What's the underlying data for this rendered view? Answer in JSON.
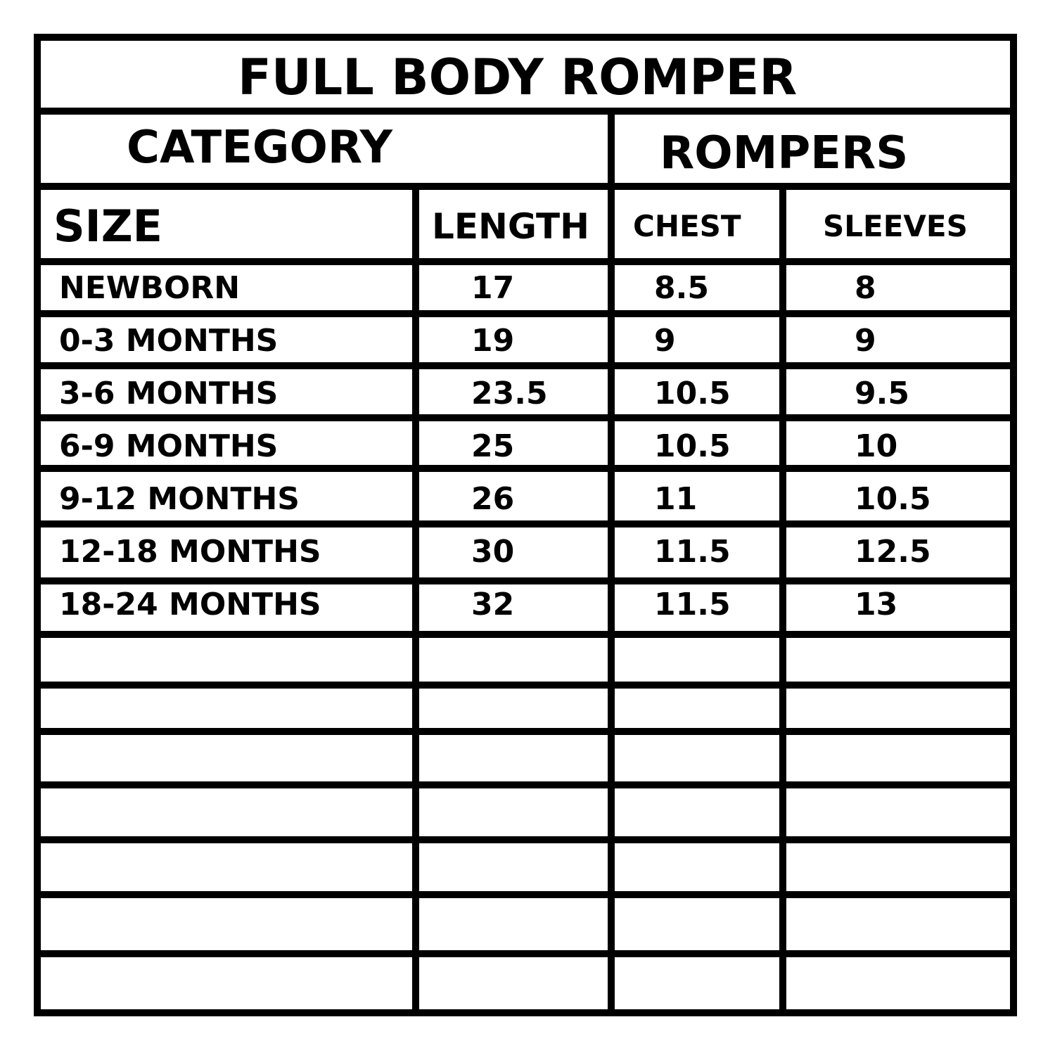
{
  "title": "FULL BODY ROMPER",
  "category_label": "CATEGORY",
  "category_value": "ROMPERS",
  "columns": [
    "SIZE",
    "LENGTH",
    "CHEST",
    "SLEEVES"
  ],
  "rows": [
    {
      "size": "NEWBORN",
      "length": "17",
      "chest": "8.5",
      "sleeves": "8"
    },
    {
      "size": "0-3 MONTHS",
      "length": "19",
      "chest": "9",
      "sleeves": "9"
    },
    {
      "size": "3-6 MONTHS",
      "length": "23.5",
      "chest": "10.5",
      "sleeves": "9.5"
    },
    {
      "size": "6-9 MONTHS",
      "length": "25",
      "chest": "10.5",
      "sleeves": "10"
    },
    {
      "size": "9-12 MONTHS",
      "length": "26",
      "chest": "11",
      "sleeves": "10.5"
    },
    {
      "size": "12-18 MONTHS",
      "length": "30",
      "chest": "11.5",
      "sleeves": "12.5"
    },
    {
      "size": "18-24 MONTHS",
      "length": "32",
      "chest": "11.5",
      "sleeves": "13"
    }
  ],
  "empty_rows": 7
}
